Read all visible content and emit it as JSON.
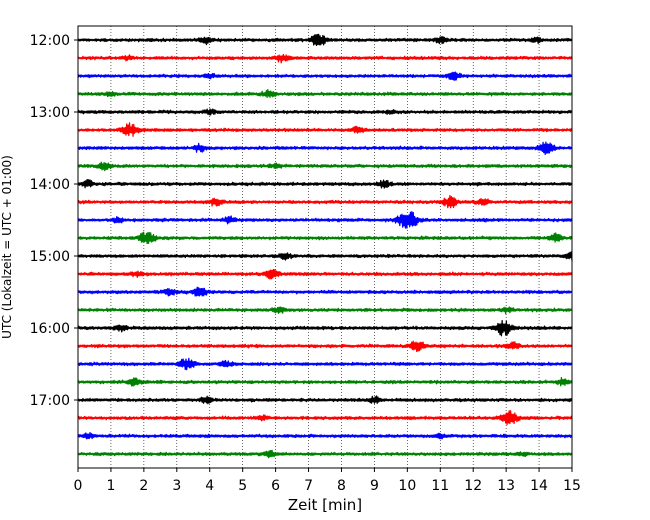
{
  "chart_data": {
    "type": "line",
    "title": "",
    "xlabel": "Zeit  [min]",
    "ylabel": "UTC (Lokalzeit = UTC + 01:00)",
    "xlim": [
      0,
      15
    ],
    "x_ticks": [
      0,
      1,
      2,
      3,
      4,
      5,
      6,
      7,
      8,
      9,
      10,
      11,
      12,
      13,
      14,
      15
    ],
    "x_tick_labels": [
      "0",
      "1",
      "2",
      "3",
      "4",
      "5",
      "6",
      "7",
      "8",
      "9",
      "10",
      "11",
      "12",
      "13",
      "14",
      "15"
    ],
    "y_tick_labels": [
      "12:00",
      "13:00",
      "14:00",
      "15:00",
      "16:00",
      "17:00"
    ],
    "grid": "vertical dotted",
    "legend": "none",
    "color_cycle": [
      "#000000",
      "#ff0000",
      "#0000ff",
      "#008000"
    ],
    "series": [
      {
        "start": "12:00",
        "events": [
          [
            3.9,
            0.5
          ],
          [
            7.3,
            1.0
          ],
          [
            11.0,
            0.5
          ],
          [
            13.9,
            0.4
          ]
        ]
      },
      {
        "start": "12:15",
        "events": [
          [
            6.2,
            0.7
          ],
          [
            1.5,
            0.3
          ]
        ]
      },
      {
        "start": "12:30",
        "events": [
          [
            11.4,
            0.6
          ],
          [
            4.0,
            0.3
          ]
        ]
      },
      {
        "start": "12:45",
        "events": [
          [
            5.8,
            0.6
          ],
          [
            1.0,
            0.3
          ]
        ]
      },
      {
        "start": "13:00",
        "events": [
          [
            4.0,
            0.4
          ],
          [
            9.5,
            0.3
          ]
        ]
      },
      {
        "start": "13:15",
        "events": [
          [
            1.6,
            1.1
          ],
          [
            8.5,
            0.5
          ]
        ]
      },
      {
        "start": "13:30",
        "events": [
          [
            3.7,
            0.6
          ],
          [
            14.2,
            0.9
          ]
        ]
      },
      {
        "start": "13:45",
        "events": [
          [
            0.8,
            0.6
          ],
          [
            6.0,
            0.3
          ]
        ]
      },
      {
        "start": "14:00",
        "events": [
          [
            0.3,
            0.5
          ],
          [
            9.3,
            0.6
          ]
        ]
      },
      {
        "start": "14:15",
        "events": [
          [
            4.2,
            0.6
          ],
          [
            11.3,
            0.9
          ],
          [
            12.3,
            0.5
          ]
        ]
      },
      {
        "start": "14:30",
        "events": [
          [
            10.0,
            1.6
          ],
          [
            4.6,
            0.5
          ],
          [
            1.2,
            0.4
          ]
        ]
      },
      {
        "start": "14:45",
        "events": [
          [
            2.1,
            1.0
          ],
          [
            14.5,
            0.6
          ]
        ]
      },
      {
        "start": "15:00",
        "events": [
          [
            6.3,
            0.5
          ],
          [
            15.0,
            0.6
          ]
        ]
      },
      {
        "start": "15:15",
        "events": [
          [
            5.9,
            0.7
          ],
          [
            1.8,
            0.4
          ]
        ]
      },
      {
        "start": "15:30",
        "events": [
          [
            3.7,
            0.8
          ],
          [
            2.8,
            0.5
          ]
        ]
      },
      {
        "start": "15:45",
        "events": [
          [
            6.1,
            0.4
          ],
          [
            13.0,
            0.4
          ]
        ]
      },
      {
        "start": "16:00",
        "events": [
          [
            12.9,
            1.2
          ],
          [
            1.3,
            0.5
          ]
        ]
      },
      {
        "start": "16:15",
        "events": [
          [
            10.3,
            0.8
          ],
          [
            13.2,
            0.5
          ]
        ]
      },
      {
        "start": "16:30",
        "events": [
          [
            3.3,
            0.8
          ],
          [
            4.5,
            0.4
          ]
        ]
      },
      {
        "start": "16:45",
        "events": [
          [
            1.7,
            0.6
          ],
          [
            14.7,
            0.5
          ]
        ]
      },
      {
        "start": "17:00",
        "events": [
          [
            3.9,
            0.5
          ],
          [
            9.0,
            0.5
          ]
        ]
      },
      {
        "start": "17:15",
        "events": [
          [
            13.1,
            1.1
          ],
          [
            5.6,
            0.4
          ]
        ]
      },
      {
        "start": "17:30",
        "events": [
          [
            11.0,
            0.3
          ],
          [
            0.3,
            0.3
          ]
        ]
      },
      {
        "start": "17:45",
        "events": [
          [
            5.8,
            0.5
          ],
          [
            13.5,
            0.3
          ]
        ]
      }
    ]
  }
}
